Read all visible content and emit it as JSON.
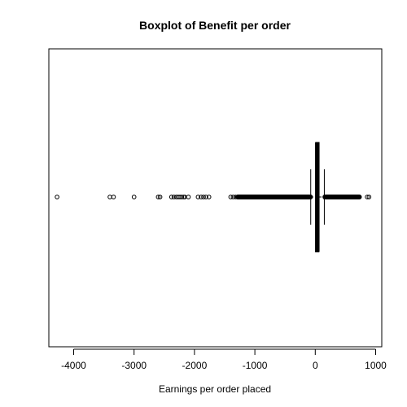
{
  "chart_data": {
    "type": "boxplot",
    "orientation": "horizontal",
    "title": "Boxplot of Benefit per order",
    "xlabel": "Earnings per order placed",
    "ylabel": "",
    "xlim": [
      -4300,
      960
    ],
    "xticks": [
      -4000,
      -3000,
      -2000,
      -1000,
      0,
      1000
    ],
    "xtick_labels": [
      "-4000",
      "-3000",
      "-2000",
      "-1000",
      "0",
      "1000"
    ],
    "grid": false,
    "legend": "none",
    "box": {
      "lower_whisker": -75,
      "q1": 7,
      "median": 31,
      "q3": 64,
      "upper_whisker": 150
    },
    "outliers": [
      -4275,
      -3400,
      -3340,
      -3000,
      -2600,
      -2570,
      -2380,
      -2340,
      -2300,
      -2270,
      -2240,
      -2210,
      -2180,
      -2160,
      -2100,
      -1940,
      -1890,
      -1850,
      -1810,
      -1760,
      -1400,
      -1360,
      -1320,
      -1290,
      860,
      890
    ],
    "outlier_bands": [
      {
        "from": -1280,
        "to": -80
      },
      {
        "from": 160,
        "to": 730
      }
    ],
    "colors": {
      "box": "#000000",
      "points": "#000000",
      "background": "#ffffff"
    }
  }
}
